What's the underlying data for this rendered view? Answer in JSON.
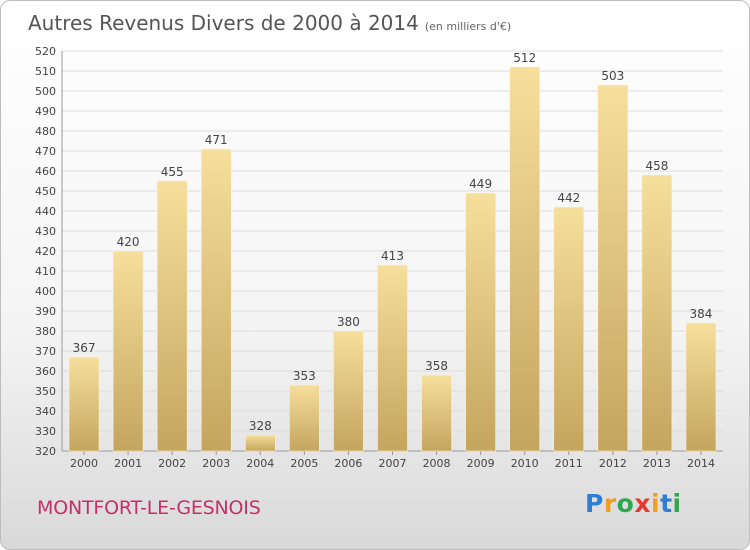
{
  "header": {
    "title": "Autres Revenus Divers de 2000 à 2014",
    "unit": "(en milliers d'€)"
  },
  "footer": {
    "city": "MONTFORT-LE-GESNOIS",
    "logo": [
      "P",
      "r",
      "o",
      "x",
      "i",
      "t",
      "i"
    ],
    "logo_colors": [
      "#2e7fd1",
      "#f0a020",
      "#2ea84a",
      "#e63b2e",
      "#f0a020",
      "#2e7fd1",
      "#2ea84a"
    ]
  },
  "chart_data": {
    "type": "bar",
    "title": "Autres Revenus Divers de 2000 à 2014",
    "xlabel": "",
    "ylabel": "",
    "categories": [
      "2000",
      "2001",
      "2002",
      "2003",
      "2004",
      "2005",
      "2006",
      "2007",
      "2008",
      "2009",
      "2010",
      "2011",
      "2012",
      "2013",
      "2014"
    ],
    "values": [
      367,
      420,
      455,
      471,
      328,
      353,
      380,
      413,
      358,
      449,
      512,
      442,
      503,
      458,
      384
    ],
    "ylim": [
      320,
      520
    ],
    "ytick_step": 10,
    "grid": true,
    "bar_color": "#e3c77c"
  }
}
